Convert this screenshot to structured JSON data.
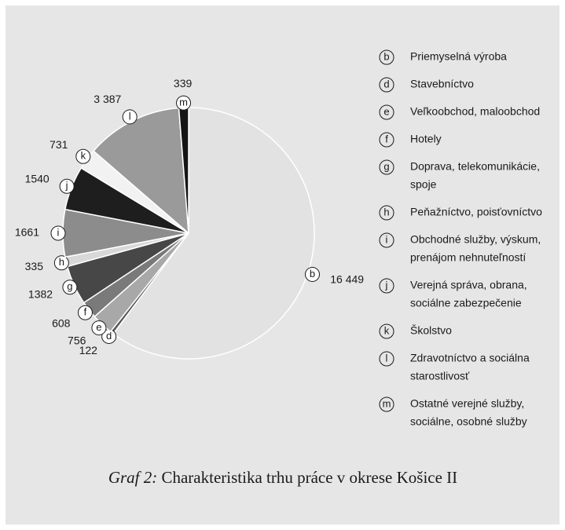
{
  "chart_data": {
    "type": "pie",
    "caption_label": "Graf 2:",
    "title": "Charakteristika trhu práce v okrese Košice II",
    "codes": [
      "b",
      "d",
      "e",
      "f",
      "g",
      "h",
      "i",
      "j",
      "k",
      "l",
      "m"
    ],
    "names": [
      [
        "Priemyselná výroba"
      ],
      [
        "Stavebníctvo"
      ],
      [
        "Veľkoobchod, maloobchod"
      ],
      [
        "Hotely"
      ],
      [
        "Doprava, telekomunikácie,",
        "spoje"
      ],
      [
        "Peňažníctvo, poisťovníctvo"
      ],
      [
        "Obchodné služby, výskum,",
        "prenájom nehnuteľností"
      ],
      [
        "Verejná správa, obrana,",
        "sociálne zabezpečenie"
      ],
      [
        "Školstvo"
      ],
      [
        "Zdravotníctvo a sociálna",
        "starostlivosť"
      ],
      [
        "Ostatné verejné služby,",
        "sociálne, osobné služby"
      ]
    ],
    "values": [
      16449,
      122,
      756,
      608,
      1382,
      335,
      1661,
      1540,
      731,
      3387,
      339
    ],
    "value_labels": [
      "16 449",
      "122",
      "756",
      "608",
      "1382",
      "335",
      "1661",
      "1540",
      "731",
      "3 387",
      "339"
    ],
    "colors": [
      "#e2e2e2",
      "#5a5a5a",
      "#a8a8a8",
      "#7a7a7a",
      "#474747",
      "#d8d8d8",
      "#8c8c8c",
      "#1e1e1e",
      "#f2f2f2",
      "#9a9a9a",
      "#151515"
    ]
  }
}
